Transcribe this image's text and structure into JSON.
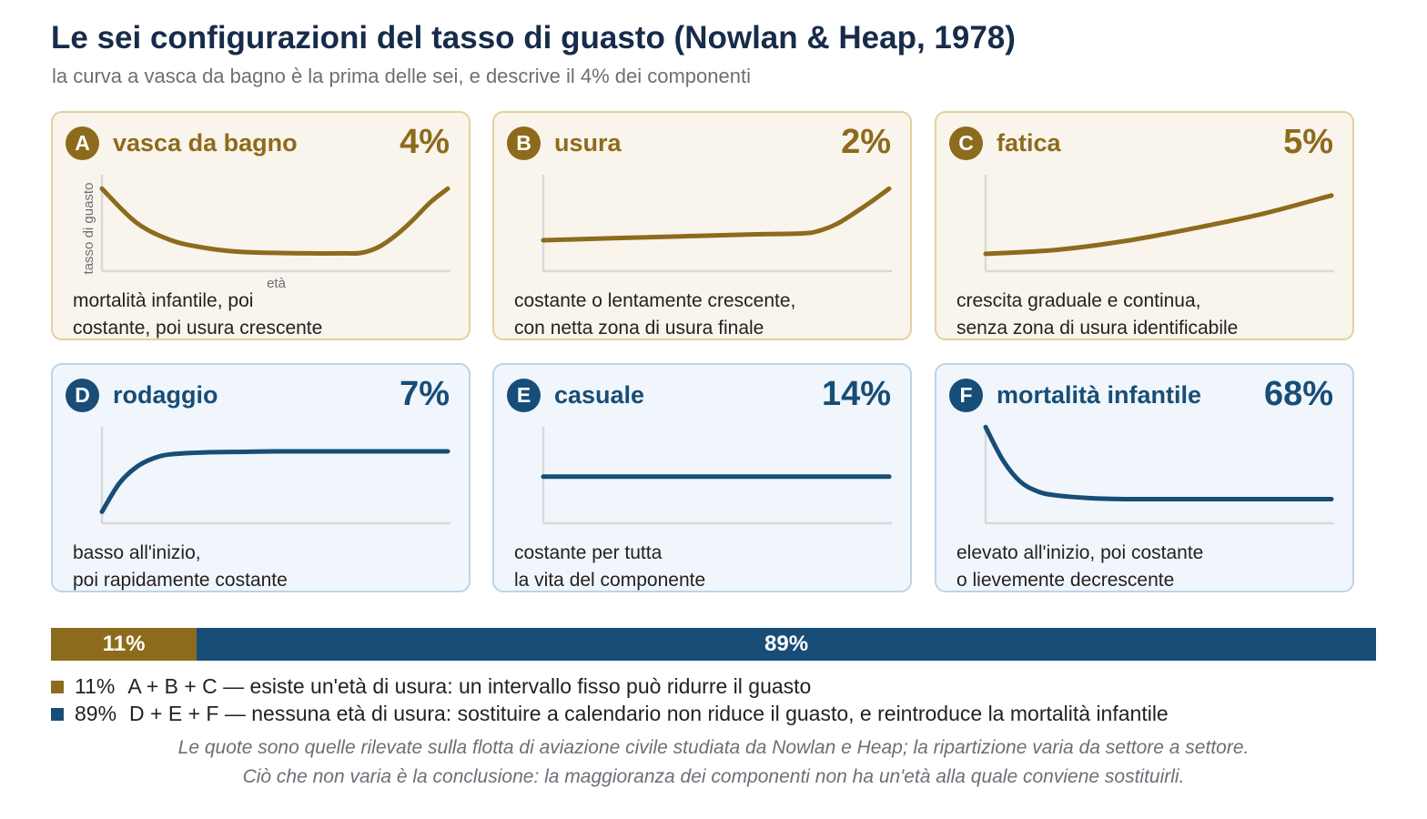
{
  "header": {
    "title": "Le sei configurazioni del tasso di guasto (Nowlan & Heap, 1978)",
    "subtitle": "la curva a vasca da bagno è la prima delle sei, e descrive il 4% dei componenti"
  },
  "colors": {
    "wear": "#8d6b1c",
    "no_wear": "#184d77",
    "axis": "#d9d9d9",
    "title": "#172c4a"
  },
  "chart_data": {
    "type": "line",
    "axis_labels": {
      "y": "tasso di guasto",
      "x": "età"
    },
    "panels": [
      {
        "letter": "A",
        "name": "vasca da bagno",
        "share": "4%",
        "share_value": 4,
        "group": "wear",
        "description": [
          "mortalità infantile, poi",
          "costante, poi usura crescente"
        ],
        "curve": {
          "x": [
            0,
            0.1,
            0.2,
            0.3,
            0.4,
            0.5,
            0.6,
            0.7,
            0.75,
            0.8,
            0.85,
            0.9,
            0.95,
            1.0
          ],
          "y": [
            0.82,
            0.47,
            0.29,
            0.21,
            0.17,
            0.16,
            0.155,
            0.155,
            0.16,
            0.22,
            0.34,
            0.5,
            0.68,
            0.82
          ]
        }
      },
      {
        "letter": "B",
        "name": "usura",
        "share": "2%",
        "share_value": 2,
        "group": "wear",
        "description": [
          "costante o lentamente crescente,",
          "con netta zona di usura finale"
        ],
        "curve": {
          "x": [
            0,
            0.2,
            0.4,
            0.6,
            0.75,
            0.8,
            0.85,
            0.9,
            0.95,
            1.0
          ],
          "y": [
            0.29,
            0.31,
            0.33,
            0.35,
            0.36,
            0.39,
            0.46,
            0.57,
            0.69,
            0.82
          ]
        }
      },
      {
        "letter": "C",
        "name": "fatica",
        "share": "5%",
        "share_value": 5,
        "group": "wear",
        "description": [
          "crescita graduale e continua,",
          "senza zona di usura identificabile"
        ],
        "curve": {
          "x": [
            0,
            0.2,
            0.4,
            0.6,
            0.8,
            1.0
          ],
          "y": [
            0.15,
            0.19,
            0.28,
            0.41,
            0.56,
            0.75
          ]
        }
      },
      {
        "letter": "D",
        "name": "rodaggio",
        "share": "7%",
        "share_value": 7,
        "group": "no_wear",
        "description": [
          "basso all'inizio,",
          "poi rapidamente costante"
        ],
        "curve": {
          "x": [
            0,
            0.05,
            0.1,
            0.15,
            0.2,
            0.3,
            0.4,
            0.5,
            0.6,
            0.8,
            1.0
          ],
          "y": [
            0.09,
            0.38,
            0.55,
            0.64,
            0.68,
            0.7,
            0.705,
            0.71,
            0.71,
            0.71,
            0.71
          ]
        }
      },
      {
        "letter": "E",
        "name": "casuale",
        "share": "14%",
        "share_value": 14,
        "group": "no_wear",
        "description": [
          "costante per tutta",
          "la vita del componente"
        ],
        "curve": {
          "x": [
            0,
            1.0
          ],
          "y": [
            0.45,
            0.45
          ]
        }
      },
      {
        "letter": "F",
        "name": "mortalità infantile",
        "share": "68%",
        "share_value": 68,
        "group": "no_wear",
        "description": [
          "elevato all'inizio, poi costante",
          "o lievemente decrescente"
        ],
        "curve": {
          "x": [
            0,
            0.05,
            0.1,
            0.15,
            0.2,
            0.3,
            0.4,
            0.5,
            0.6,
            0.8,
            1.0
          ],
          "y": [
            0.96,
            0.62,
            0.4,
            0.3,
            0.26,
            0.23,
            0.22,
            0.22,
            0.22,
            0.22,
            0.22
          ]
        }
      }
    ],
    "summary_bar": [
      {
        "label": "11%",
        "value": 11,
        "group": "wear"
      },
      {
        "label": "89%",
        "value": 89,
        "group": "no_wear"
      }
    ]
  },
  "legend": [
    {
      "pct": "11%",
      "text": "A + B + C — esiste un'età di usura: un intervallo fisso può ridurre il guasto"
    },
    {
      "pct": "89%",
      "text": "D + E + F — nessuna età di usura: sostituire a calendario non riduce il guasto, e reintroduce la mortalità infantile"
    }
  ],
  "notes": [
    "Le quote sono quelle rilevate sulla flotta di aviazione civile studiata da Nowlan e Heap; la ripartizione varia da settore a settore.",
    "Ciò che non varia è la conclusione: la maggioranza dei componenti non ha un'età alla quale conviene sostituirli."
  ]
}
